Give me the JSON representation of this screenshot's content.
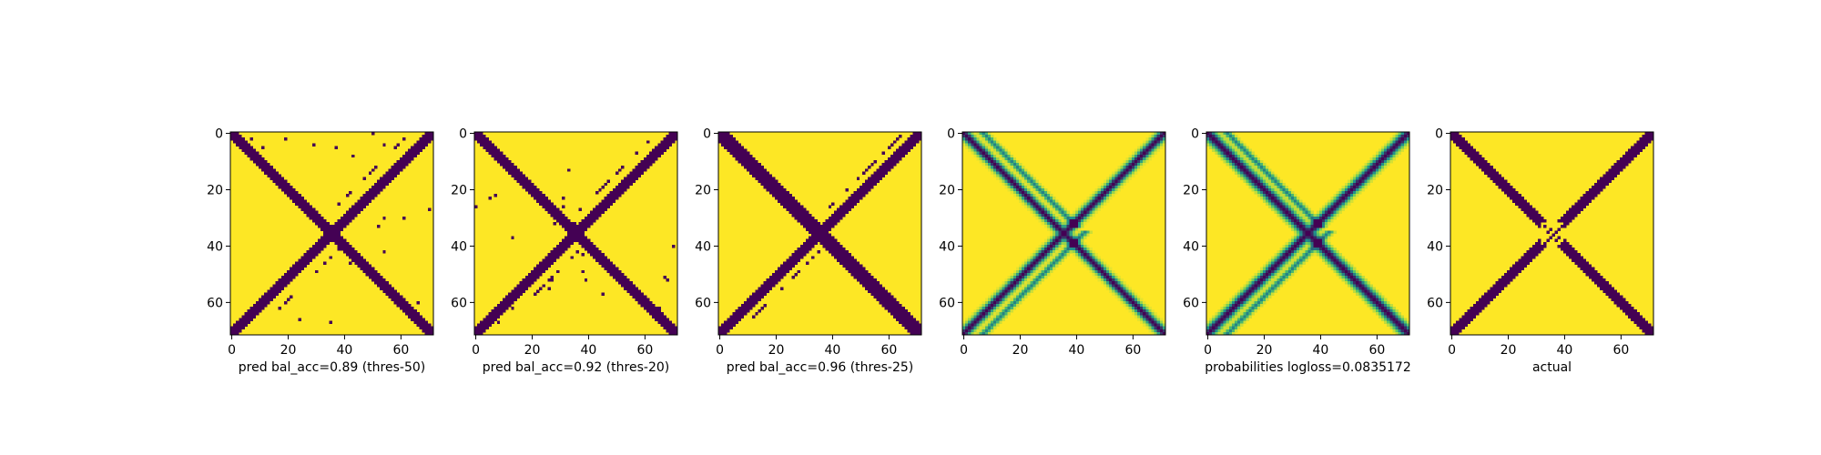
{
  "chart_data": [
    {
      "type": "heatmap",
      "title": "",
      "xlabel": "pred bal_acc=0.89 (thres-50)",
      "ylabel": "",
      "matrix_size": 72,
      "xlim": [
        0,
        71
      ],
      "ylim": [
        71,
        0
      ],
      "xticks": [
        "0",
        "20",
        "40",
        "60"
      ],
      "yticks": [
        "0",
        "20",
        "40",
        "60"
      ],
      "colormap": "viridis",
      "binary": true,
      "pattern": {
        "main_diag_width": 2,
        "anti_diag_width": 2.5,
        "center_gap": false,
        "faint_bands": false,
        "stray_line_offset": 8,
        "noise_level": "medium"
      }
    },
    {
      "type": "heatmap",
      "title": "",
      "xlabel": "pred bal_acc=0.92 (thres-20)",
      "ylabel": "",
      "matrix_size": 72,
      "xlim": [
        0,
        71
      ],
      "ylim": [
        71,
        0
      ],
      "xticks": [
        "0",
        "20",
        "40",
        "60"
      ],
      "yticks": [
        "0",
        "20",
        "40",
        "60"
      ],
      "colormap": "viridis",
      "binary": true,
      "pattern": {
        "main_diag_width": 2.5,
        "anti_diag_width": 2.5,
        "center_gap": false,
        "faint_bands": false,
        "stray_line_offset": 7,
        "noise_level": "medium"
      }
    },
    {
      "type": "heatmap",
      "title": "",
      "xlabel": "pred bal_acc=0.96 (thres-25)",
      "ylabel": "",
      "matrix_size": 72,
      "xlim": [
        0,
        71
      ],
      "ylim": [
        71,
        0
      ],
      "xticks": [
        "0",
        "20",
        "40",
        "60"
      ],
      "yticks": [
        "0",
        "20",
        "40",
        "60"
      ],
      "colormap": "viridis",
      "binary": true,
      "pattern": {
        "main_diag_width": 3,
        "anti_diag_width": 2.5,
        "center_gap": false,
        "faint_bands": false,
        "stray_line_offset": 6,
        "noise_level": "low"
      }
    },
    {
      "type": "heatmap",
      "title": "",
      "xlabel": "",
      "ylabel": "",
      "matrix_size": 72,
      "xlim": [
        0,
        71
      ],
      "ylim": [
        71,
        0
      ],
      "xticks": [
        "0",
        "20",
        "40",
        "60"
      ],
      "yticks": [
        "0",
        "20",
        "40",
        "60"
      ],
      "colormap": "viridis",
      "binary": false,
      "pattern": {
        "main_diag_width": 2.2,
        "anti_diag_width": 2.2,
        "center_gap": false,
        "faint_bands": true,
        "stray_line_offset": 5,
        "noise_level": "low"
      }
    },
    {
      "type": "heatmap",
      "title": "",
      "xlabel": "probabilities logloss=0.0835172",
      "ylabel": "",
      "matrix_size": 72,
      "xlim": [
        0,
        71
      ],
      "ylim": [
        71,
        0
      ],
      "xticks": [
        "0",
        "20",
        "40",
        "60"
      ],
      "yticks": [
        "0",
        "20",
        "40",
        "60"
      ],
      "colormap": "viridis",
      "binary": false,
      "pattern": {
        "main_diag_width": 2.6,
        "anti_diag_width": 2.4,
        "center_gap": false,
        "faint_bands": true,
        "stray_line_offset": 5,
        "noise_level": "low"
      }
    },
    {
      "type": "heatmap",
      "title": "",
      "xlabel": "actual",
      "ylabel": "",
      "matrix_size": 72,
      "xlim": [
        0,
        71
      ],
      "ylim": [
        71,
        0
      ],
      "xticks": [
        "0",
        "20",
        "40",
        "60"
      ],
      "yticks": [
        "0",
        "20",
        "40",
        "60"
      ],
      "colormap": "viridis",
      "binary": true,
      "pattern": {
        "main_diag_width": 2.2,
        "anti_diag_width": 2.2,
        "center_gap": true,
        "faint_bands": false,
        "stray_line_offset": 0,
        "noise_level": "none"
      }
    }
  ],
  "colors": {
    "low": "#440154",
    "mid": "#21918c",
    "light": "#5ec962",
    "high": "#fde725",
    "axis": "#000000",
    "background": "#ffffff"
  }
}
